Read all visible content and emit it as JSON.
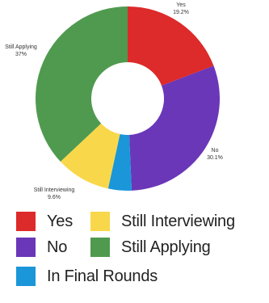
{
  "chart_data": {
    "type": "pie",
    "donut": true,
    "slices": [
      {
        "name": "Yes",
        "value": 19.2,
        "color": "#dd2a2a",
        "label": "Yes",
        "value_label": "19.2%"
      },
      {
        "name": "No",
        "value": 30.1,
        "color": "#6a37b8",
        "label": "No",
        "value_label": "30.1%"
      },
      {
        "name": "In Final Rounds",
        "value": 4.1,
        "color": "#1a96d9",
        "label": "",
        "value_label": ""
      },
      {
        "name": "Still Interviewing",
        "value": 9.6,
        "color": "#f8d84a",
        "label": "Still Interviewing",
        "value_label": "9.6%"
      },
      {
        "name": "Still Applying",
        "value": 37,
        "color": "#4f9a4f",
        "label": "Still Applying",
        "value_label": "37%"
      }
    ]
  },
  "legend": {
    "items": [
      {
        "label": "Yes",
        "color": "#dd2a2a"
      },
      {
        "label": "Still Interviewing",
        "color": "#f8d84a"
      },
      {
        "label": "No",
        "color": "#6a37b8"
      },
      {
        "label": "Still Applying",
        "color": "#4f9a4f"
      },
      {
        "label": "In Final Rounds",
        "color": "#1a96d9"
      }
    ]
  }
}
